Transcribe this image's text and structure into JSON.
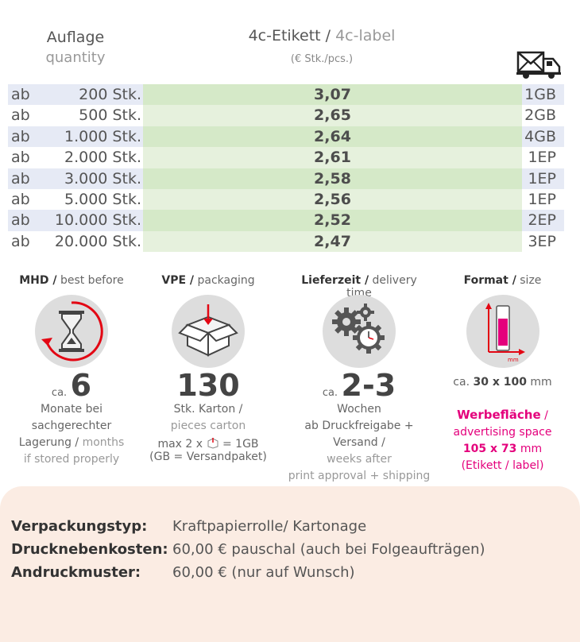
{
  "header": {
    "quantity_de": "Auflage",
    "quantity_en": "quantity",
    "label_de": "4c-Etikett /",
    "label_en": "4c-label",
    "unit": "(€ Stk./pcs.)",
    "shipping_icon": "mail-truck-icon"
  },
  "price_rows": [
    {
      "ab": "ab",
      "qty": "200 Stk.",
      "price": "3,07",
      "ship": "1GB"
    },
    {
      "ab": "ab",
      "qty": "500 Stk.",
      "price": "2,65",
      "ship": "2GB"
    },
    {
      "ab": "ab",
      "qty": "1.000 Stk.",
      "price": "2,64",
      "ship": "4GB"
    },
    {
      "ab": "ab",
      "qty": "2.000 Stk.",
      "price": "2,61",
      "ship": "1EP"
    },
    {
      "ab": "ab",
      "qty": "3.000 Stk.",
      "price": "2,58",
      "ship": "1EP"
    },
    {
      "ab": "ab",
      "qty": "5.000 Stk.",
      "price": "2,56",
      "ship": "1EP"
    },
    {
      "ab": "ab",
      "qty": "10.000 Stk.",
      "price": "2,52",
      "ship": "2EP"
    },
    {
      "ab": "ab",
      "qty": "20.000 Stk.",
      "price": "2,47",
      "ship": "3EP"
    }
  ],
  "features": {
    "mhd": {
      "title_de": "MHD /",
      "title_en": "best before",
      "icon": "hourglass-icon",
      "ca": "ca.",
      "value": "6",
      "line1": "Monate bei",
      "line2": "sachgerechter",
      "line3_de": "Lagerung /",
      "line3_en": "months",
      "line4": "if stored properly"
    },
    "vpe": {
      "title_de": "VPE /",
      "title_en": "packaging",
      "icon": "box-icon",
      "value": "130",
      "line1": "Stk. Karton /",
      "line2": "pieces carton",
      "line3a": "max 2 x",
      "line3b": "= 1GB",
      "line4": "(GB = Versandpaket)"
    },
    "delivery": {
      "title_de": "Lieferzeit /",
      "title_en": "delivery time",
      "icon": "gears-clock-icon",
      "ca": "ca.",
      "value": "2-3",
      "line1": "Wochen",
      "line2": "ab Druckfreigabe + Versand /",
      "line3": "weeks after",
      "line4": "print approval + shipping"
    },
    "format": {
      "title_de": "Format /",
      "title_en": "size",
      "icon": "label-size-icon",
      "icon_unit": "mm",
      "size_pre": "ca.",
      "size_val": "30 x 100",
      "size_unit": "mm",
      "adv_de": "Werbefläche",
      "adv_slash": "/",
      "adv_en": "advertising space",
      "adv_size": "105 x 73",
      "adv_unit": "mm",
      "adv_note": "(Etikett / label)"
    }
  },
  "bottom": {
    "rows": [
      {
        "key": "Verpackungstyp:",
        "value": "Kraftpapierrolle/ Kartonage"
      },
      {
        "key": "Drucknebenkosten:",
        "value": "60,00 € pauschal (auch bei Folgeaufträgen)"
      },
      {
        "key": "Andruckmuster:",
        "value": "60,00 € (nur auf Wunsch)"
      }
    ]
  },
  "colors": {
    "pink": "#e4007c",
    "red": "#e30613",
    "green_row": "#d5e9c8",
    "blue_row": "#e6eaf5",
    "bottom_bg": "#fbece3"
  }
}
